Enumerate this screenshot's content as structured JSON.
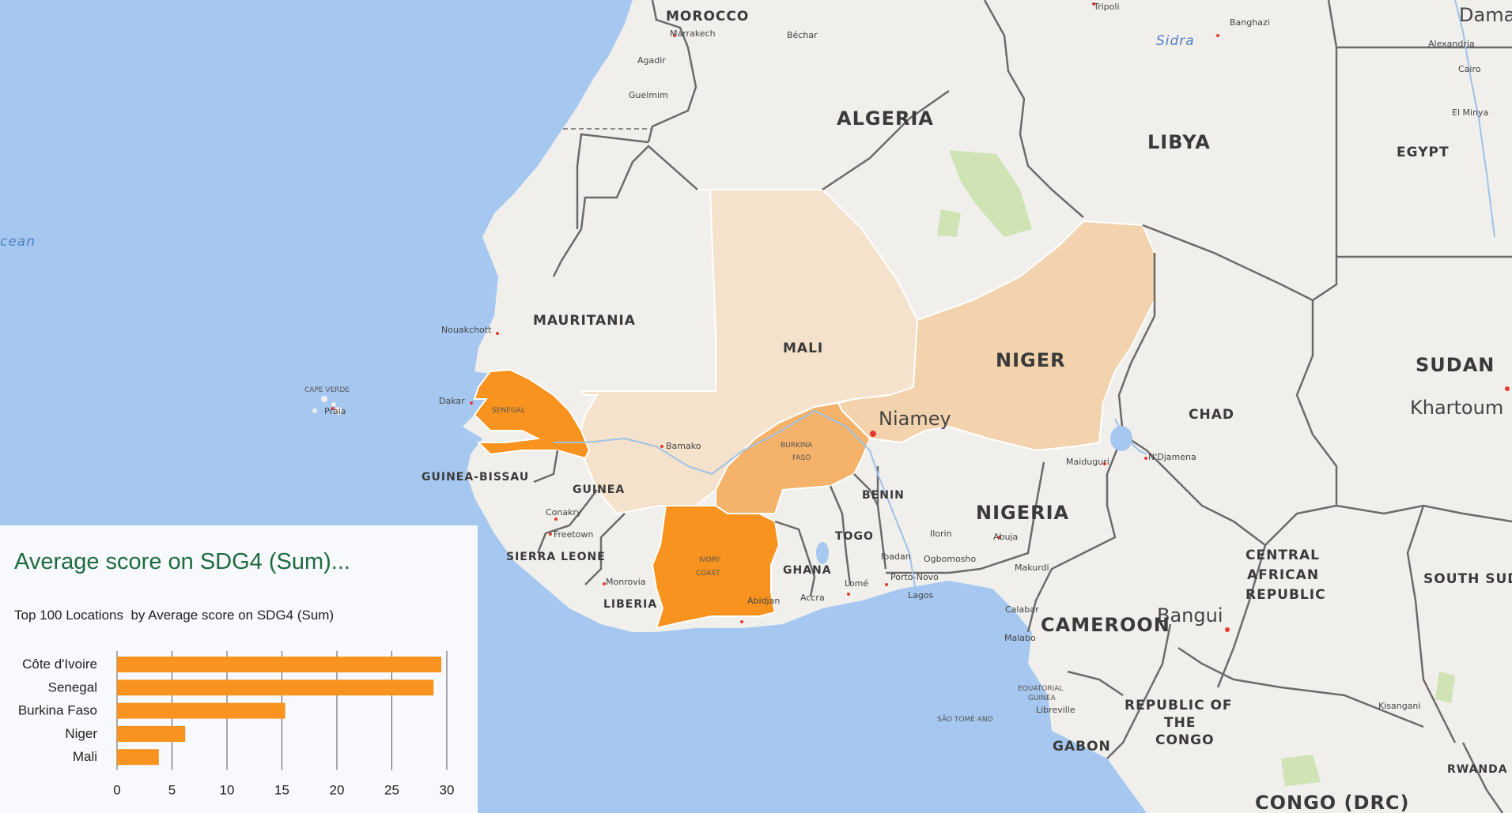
{
  "map": {
    "labels": {
      "morocco": "MOROCCO",
      "algeria": "ALGERIA",
      "libya": "LIBYA",
      "egypt": "EGYPT",
      "sudan": "SUDAN",
      "south_sudan": "SOUTH SUD",
      "mauritania": "MAURITANIA",
      "mali": "MALI",
      "niger": "NIGER",
      "chad": "CHAD",
      "senegal": "SENEGAL",
      "burkina_l1": "BURKINA",
      "burkina_l2": "FASO",
      "ivory_l1": "IVORY",
      "ivory_l2": "COAST",
      "guinea": "GUINEA",
      "guinea_bissau": "GUINEA-BISSAU",
      "sierra_leone": "SIERRA LEONE",
      "liberia": "LIBERIA",
      "ghana": "GHANA",
      "togo": "TOGO",
      "benin": "BENIN",
      "nigeria": "NIGERIA",
      "cameroon": "CAMEROON",
      "car_l1": "CENTRAL",
      "car_l2": "AFRICAN",
      "car_l3": "REPUBLIC",
      "rep_congo_l1": "REPUBLIC OF",
      "rep_congo_l2": "THE",
      "rep_congo_l3": "CONGO",
      "gabon": "GABON",
      "drc": "CONGO (DRC)",
      "eq_guinea_l1": "EQUATORIAL",
      "eq_guinea_l2": "GUINEA",
      "rwanda": "RWANDA",
      "cape_verde": "CAPE VERDE",
      "sao_tome": "SÃO TOMÉ AND",
      "ocean": "cean",
      "sidra": "Sidra",
      "niamey": "Niamey",
      "khartoum": "Khartoum",
      "bangui": "Bangui",
      "damascus": "Dama",
      "tripoli": "Tripoli",
      "banghazi": "Banghazi",
      "alexandria": "Alexandria",
      "cairo": "Cairo",
      "el_minya": "El Minya",
      "nouakchott": "Nouakchott",
      "dakar": "Dakar",
      "bamako": "Bamako",
      "conakry": "Conakry",
      "freetown": "Freetown",
      "monrovia": "Monrovia",
      "abidjan": "Abidjan",
      "accra": "Accra",
      "lome": "Lomé",
      "porto_novo": "Porto-Novo",
      "lagos": "Lagos",
      "ibadan": "Ibadan",
      "ogbomosho": "Ogbomosho",
      "ilorin": "Ilorin",
      "abuja": "Abuja",
      "makurdi": "Makurdi",
      "calabar": "Calabar",
      "maiduguri": "Maiduguri",
      "ndjamena": "N'Djamena",
      "marrakech": "Marrakech",
      "agadir": "Agadir",
      "guelmim": "Guelmim",
      "bechar": "Béchar",
      "praia": "Praia",
      "kisangani": "Kisangani",
      "libreville": "Libreville",
      "malabo": "Malabo"
    },
    "colors": {
      "ocean": "#a6c8f0",
      "land": "#f0efec",
      "border": "#6b6b6b",
      "choropleth_high": "#f7931e",
      "choropleth_mid": "#f4b26a",
      "choropleth_low": "#f3d3ae",
      "choropleth_lowest": "#f5e2cc"
    }
  },
  "chart": {
    "title": "Average score on SDG4 (Sum)...",
    "subtitle": "Top 100 Locations  by Average score on SDG4 (Sum)"
  },
  "chart_data": {
    "type": "bar",
    "orientation": "horizontal",
    "title": "Average score on SDG4 (Sum)...",
    "subtitle": "Top 100 Locations  by Average score on SDG4 (Sum)",
    "categories": [
      "Côte d'Ivoire",
      "Senegal",
      "Burkina Faso",
      "Niger",
      "Mali"
    ],
    "values": [
      29.5,
      28.8,
      15.3,
      6.2,
      3.8
    ],
    "xlim": [
      0,
      30
    ],
    "xticks": [
      "0",
      "5",
      "10",
      "15",
      "20",
      "25",
      "30"
    ],
    "grid": true,
    "bar_color": "#f7931e"
  }
}
